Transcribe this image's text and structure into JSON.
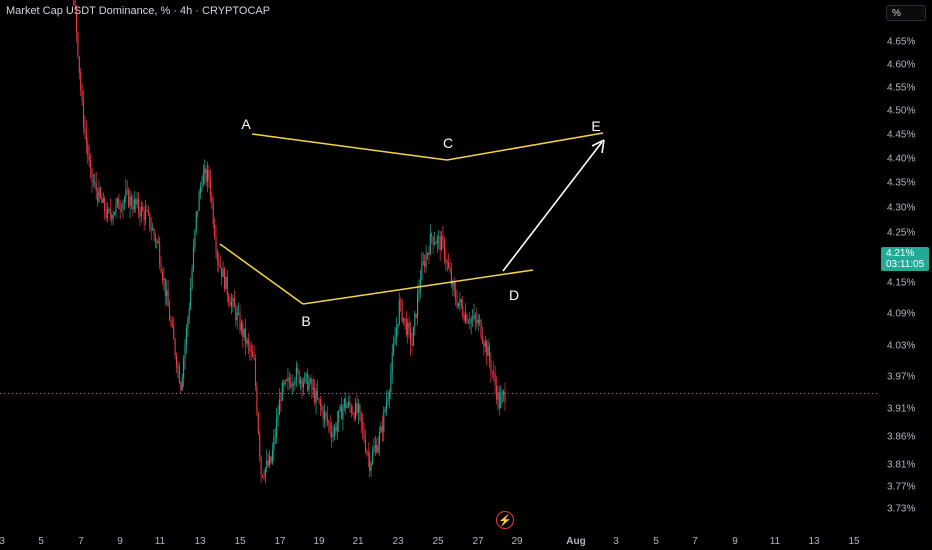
{
  "header": {
    "title": "Market Cap USDT Dominance, % · 4h · CRYPTOCAP",
    "unit": "%"
  },
  "price_tag": {
    "value": "4.21%",
    "countdown": "03:11:05"
  },
  "icons": {
    "flash": "lightning-icon"
  },
  "colors": {
    "up": "#22ab94",
    "down": "#f23645",
    "pattern": "#f5d547",
    "arrow": "#ffffff",
    "grid": "#1e222d"
  },
  "chart_data": {
    "type": "candlestick",
    "y_axis_label": "%",
    "y_ticks": [
      "4.65%",
      "4.60%",
      "4.55%",
      "4.50%",
      "4.45%",
      "4.40%",
      "4.35%",
      "4.30%",
      "4.25%",
      "4.15%",
      "4.09%",
      "4.03%",
      "3.97%",
      "3.91%",
      "3.86%",
      "3.81%",
      "3.77%",
      "3.73%"
    ],
    "x_ticks": [
      "3",
      "5",
      "7",
      "9",
      "11",
      "13",
      "15",
      "17",
      "19",
      "21",
      "23",
      "25",
      "27",
      "29",
      "Aug",
      "3",
      "5",
      "7",
      "9",
      "11",
      "13",
      "15"
    ],
    "current_value": 4.21,
    "pattern_points": [
      {
        "label": "A",
        "value": 4.45
      },
      {
        "label": "B",
        "value": 4.11
      },
      {
        "label": "C",
        "value": 4.4
      },
      {
        "label": "D",
        "value": 4.17
      },
      {
        "label": "E",
        "value": 4.45
      }
    ]
  }
}
